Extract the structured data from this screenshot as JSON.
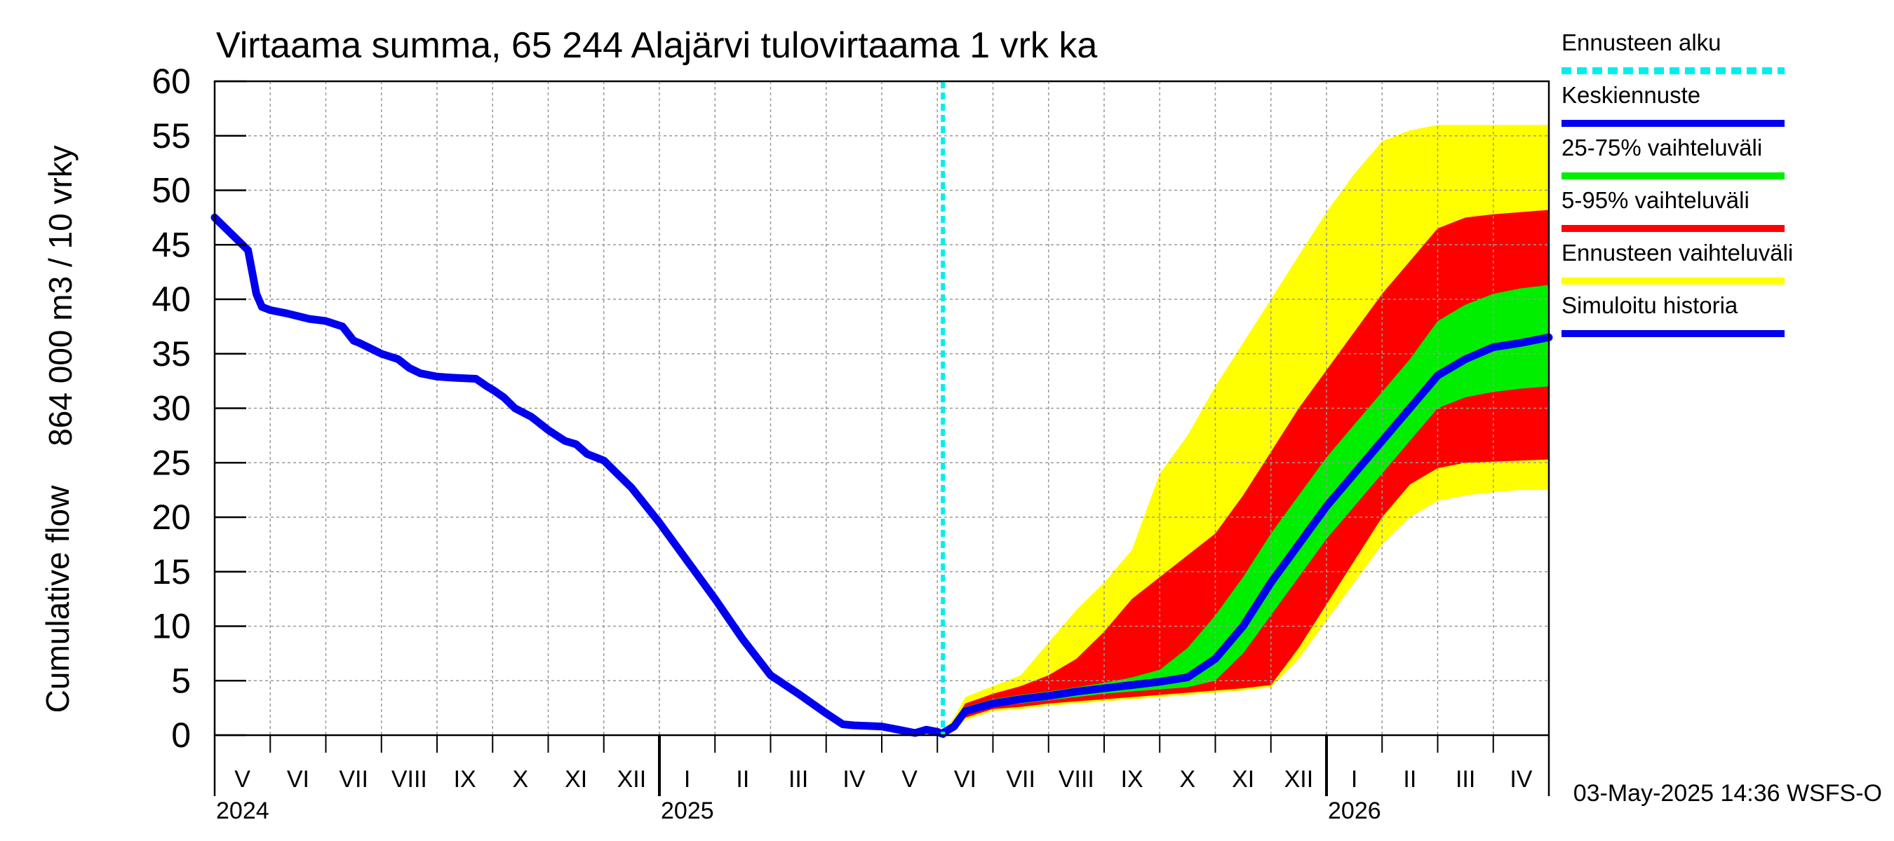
{
  "chart_data": {
    "type": "area",
    "title": "Virtaama summa, 65 244 Alajärvi tulovirtaama 1 vrk ka",
    "ylabel_top": "864 000 m3 / 10 vrky",
    "ylabel_bottom": "Cumulative flow",
    "ylim": [
      0,
      60
    ],
    "yticks": [
      0,
      5,
      10,
      15,
      20,
      25,
      30,
      35,
      40,
      45,
      50,
      55,
      60
    ],
    "x_unit": "months since 2024-04-01",
    "xlim": [
      0,
      24
    ],
    "forecast_start": 13.1,
    "month_labels": [
      "V",
      "VI",
      "VII",
      "VIII",
      "IX",
      "X",
      "XI",
      "XII",
      "I",
      "II",
      "III",
      "IV",
      "V",
      "VI",
      "VII",
      "VIII",
      "IX",
      "X",
      "XI",
      "XII",
      "I",
      "II",
      "III",
      "IV"
    ],
    "year_labels": [
      {
        "label": "2024",
        "at": 0
      },
      {
        "label": "2025",
        "at": 8
      },
      {
        "label": "2026",
        "at": 20
      }
    ],
    "timestamp": "03-May-2025 14:36 WSFS-O",
    "colors": {
      "history": "#0000ee",
      "median": "#0000ee",
      "band_25_75": "#00ee00",
      "band_5_95": "#ff0000",
      "band_full": "#ffff00",
      "forecast_start": "#00eeee",
      "grid": "#999999"
    },
    "legend": [
      {
        "key": "forecast_start",
        "label": "Ennusteen alku"
      },
      {
        "key": "median",
        "label": "Keskiennuste"
      },
      {
        "key": "band_25_75",
        "label": "25-75% vaihteluväli"
      },
      {
        "key": "band_5_95",
        "label": "5-95% vaihteluväli"
      },
      {
        "key": "band_full",
        "label": "Ennusteen vaihteluväli"
      },
      {
        "key": "history",
        "label": "Simuloitu historia"
      }
    ],
    "history": {
      "x": [
        0,
        0.3,
        0.6,
        0.75,
        0.85,
        1.0,
        1.3,
        1.7,
        2.0,
        2.3,
        2.5,
        2.6,
        2.8,
        3.0,
        3.3,
        3.5,
        3.7,
        4.0,
        4.3,
        4.7,
        4.9,
        5.0,
        5.2,
        5.4,
        5.7,
        6.0,
        6.3,
        6.5,
        6.7,
        7.0,
        7.5,
        8.0,
        8.5,
        9.0,
        9.5,
        10.0,
        10.5,
        11.0,
        11.3,
        11.5,
        12.0,
        12.3,
        12.6,
        12.8,
        13.0,
        13.1
      ],
      "y": [
        47.5,
        46.0,
        44.5,
        40.5,
        39.3,
        39.0,
        38.7,
        38.2,
        38.0,
        37.5,
        36.2,
        36.0,
        35.5,
        35.0,
        34.5,
        33.7,
        33.2,
        32.9,
        32.8,
        32.7,
        32.0,
        31.7,
        31.0,
        30.0,
        29.2,
        28.0,
        27.0,
        26.7,
        25.8,
        25.2,
        22.7,
        19.5,
        16.0,
        12.5,
        8.8,
        5.5,
        3.8,
        2.0,
        1.0,
        0.9,
        0.8,
        0.5,
        0.2,
        0.5,
        0.3,
        0.1
      ]
    },
    "forecast": {
      "x": [
        13.1,
        13.3,
        13.5,
        14.0,
        14.5,
        15.0,
        15.5,
        16.0,
        16.5,
        17.0,
        17.5,
        18.0,
        18.5,
        19.0,
        19.5,
        20.0,
        20.5,
        21.0,
        21.5,
        22.0,
        22.5,
        23.0,
        23.5,
        24.0
      ],
      "median": [
        0.2,
        0.8,
        2.2,
        2.9,
        3.3,
        3.6,
        4.0,
        4.3,
        4.6,
        4.9,
        5.3,
        7.0,
        10.0,
        14.0,
        17.5,
        21.0,
        24.0,
        27.0,
        30.0,
        33.0,
        34.5,
        35.6,
        36.0,
        36.5
      ],
      "p25": [
        0.2,
        0.6,
        2.0,
        2.6,
        2.9,
        3.2,
        3.5,
        3.8,
        4.0,
        4.2,
        4.4,
        5.0,
        7.5,
        11.0,
        14.5,
        18.0,
        21.0,
        24.0,
        27.0,
        30.0,
        31.0,
        31.5,
        31.8,
        32.0
      ],
      "p75": [
        0.2,
        1.0,
        2.6,
        3.3,
        3.7,
        4.0,
        4.4,
        4.8,
        5.3,
        6.0,
        8.0,
        11.0,
        14.5,
        18.5,
        22.0,
        25.5,
        28.5,
        31.5,
        34.5,
        38.0,
        39.5,
        40.5,
        41.0,
        41.3
      ],
      "p5": [
        0.1,
        0.4,
        1.6,
        2.4,
        2.6,
        2.9,
        3.1,
        3.3,
        3.5,
        3.7,
        3.9,
        4.1,
        4.3,
        4.6,
        8.0,
        12.0,
        16.0,
        20.0,
        23.0,
        24.5,
        25.0,
        25.1,
        25.2,
        25.3
      ],
      "p95": [
        0.3,
        1.2,
        2.9,
        3.8,
        4.5,
        5.5,
        7.0,
        9.5,
        12.5,
        14.5,
        16.5,
        18.5,
        22.0,
        26.0,
        30.0,
        33.5,
        37.0,
        40.5,
        43.5,
        46.5,
        47.5,
        47.8,
        48.0,
        48.2
      ],
      "min": [
        0.1,
        0.3,
        1.4,
        2.2,
        2.4,
        2.7,
        2.9,
        3.1,
        3.3,
        3.5,
        3.7,
        3.9,
        4.1,
        4.4,
        7.0,
        10.5,
        14.0,
        17.5,
        20.0,
        21.5,
        22.0,
        22.3,
        22.5,
        22.5
      ],
      "max": [
        0.4,
        1.6,
        3.5,
        4.5,
        5.5,
        8.5,
        11.5,
        14.0,
        17.0,
        24.0,
        27.5,
        32.0,
        36.0,
        40.0,
        44.0,
        48.0,
        51.5,
        54.5,
        55.5,
        56.0,
        56.0,
        56.0,
        56.0,
        56.0
      ]
    }
  }
}
